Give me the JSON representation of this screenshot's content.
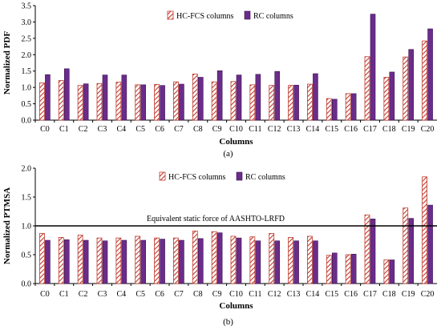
{
  "chart_data": [
    {
      "type": "bar",
      "panel_label": "(a)",
      "categories": [
        "C0",
        "C1",
        "C2",
        "C3",
        "C4",
        "C5",
        "C6",
        "C7",
        "C8",
        "C9",
        "C10",
        "C11",
        "C12",
        "C13",
        "C14",
        "C15",
        "C16",
        "C17",
        "C18",
        "C19",
        "C20"
      ],
      "series": [
        {
          "name": "HC-FCS columns",
          "values": [
            1.14,
            1.21,
            1.06,
            1.12,
            1.16,
            1.08,
            1.09,
            1.17,
            1.41,
            1.17,
            1.18,
            1.08,
            1.06,
            1.06,
            1.1,
            0.66,
            0.81,
            1.94,
            1.31,
            1.93,
            2.42
          ]
        },
        {
          "name": "RC columns",
          "values": [
            1.39,
            1.57,
            1.11,
            1.38,
            1.38,
            1.08,
            1.06,
            1.1,
            1.31,
            1.51,
            1.38,
            1.4,
            1.49,
            1.07,
            1.42,
            0.64,
            0.81,
            3.24,
            1.47,
            2.16,
            2.79
          ]
        }
      ],
      "xlabel": "Columns",
      "ylabel": "Normalized PDF",
      "ylim": [
        0,
        3.5
      ],
      "yticks": [
        "0.0",
        "0.5",
        "1.0",
        "1.5",
        "2.0",
        "2.5",
        "3.0",
        "3.5"
      ],
      "grid": false,
      "legend_position": "top-center"
    },
    {
      "type": "bar",
      "panel_label": "(b)",
      "categories": [
        "C0",
        "C1",
        "C2",
        "C3",
        "C4",
        "C5",
        "C6",
        "C7",
        "C8",
        "C9",
        "C10",
        "C11",
        "C12",
        "C13",
        "C14",
        "C15",
        "C16",
        "C17",
        "C18",
        "C19",
        "C20"
      ],
      "series": [
        {
          "name": "HC-FCS columns",
          "values": [
            0.87,
            0.8,
            0.84,
            0.79,
            0.79,
            0.82,
            0.79,
            0.79,
            0.91,
            0.9,
            0.82,
            0.81,
            0.87,
            0.8,
            0.82,
            0.49,
            0.5,
            1.19,
            0.41,
            1.31,
            1.85
          ]
        },
        {
          "name": "RC columns",
          "values": [
            0.75,
            0.76,
            0.75,
            0.74,
            0.75,
            0.75,
            0.77,
            0.75,
            0.78,
            0.88,
            0.79,
            0.74,
            0.74,
            0.74,
            0.74,
            0.53,
            0.51,
            1.12,
            0.41,
            1.13,
            1.36
          ]
        }
      ],
      "xlabel": "Columns",
      "ylabel": "Normalized PTMSA",
      "ylim": [
        0,
        2.0
      ],
      "yticks": [
        "0.0",
        "0.5",
        "1.0",
        "1.5",
        "2.0"
      ],
      "grid": false,
      "legend_position": "top-center",
      "reference_line": {
        "value": 1.0,
        "label": "Equivalent static force of AASHTO-LRFD"
      }
    }
  ],
  "colors": {
    "hc_fcs_stripe": "#c0392b",
    "rc_fill": "#6b2c8a",
    "axis": "#000000"
  }
}
